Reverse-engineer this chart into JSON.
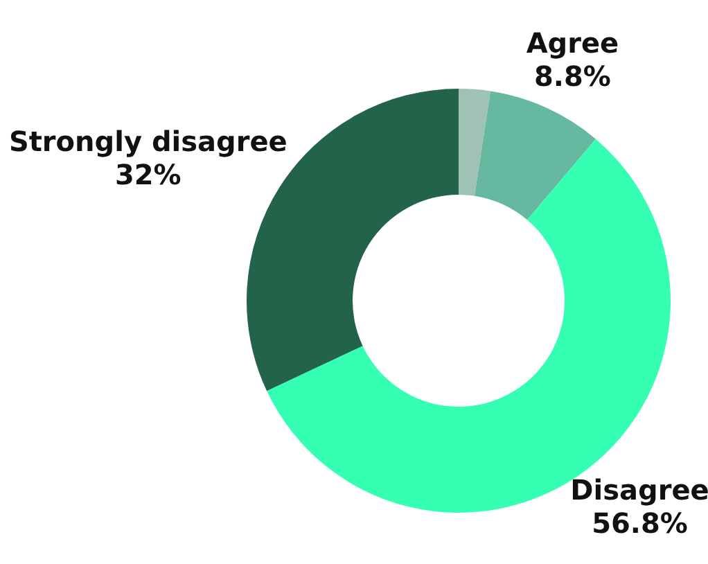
{
  "chart_data": {
    "type": "donut",
    "categories": [
      null,
      "Agree",
      "Disagree",
      "Strongly disagree"
    ],
    "values": [
      2.4,
      8.8,
      56.8,
      32
    ],
    "colors": [
      "#9fc2b5",
      "#66b9a0",
      "#35ffb2",
      "#22634a"
    ],
    "value_labels": [
      null,
      "8.8%",
      "56.8%",
      "32%"
    ],
    "legend": false
  }
}
